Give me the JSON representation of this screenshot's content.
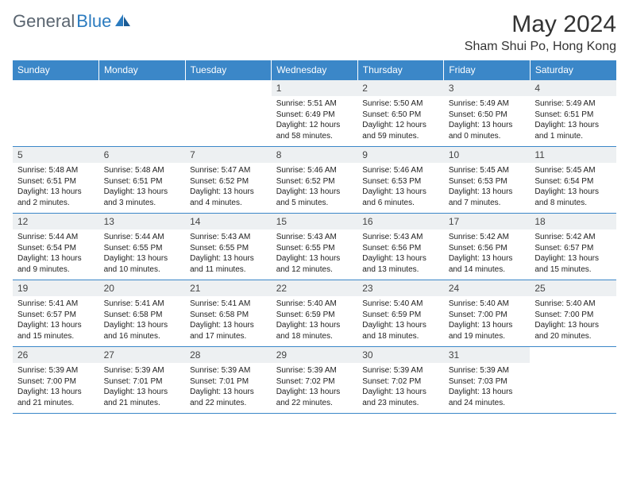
{
  "logo": {
    "text_a": "General",
    "text_b": "Blue"
  },
  "title": "May 2024",
  "location": "Sham Shui Po, Hong Kong",
  "colors": {
    "header_bg": "#3b87c8",
    "header_text": "#ffffff",
    "daynum_bg": "#edf0f2",
    "border": "#3b87c8",
    "logo_gray": "#5a6570",
    "logo_blue": "#2b7bbf"
  },
  "weekdays": [
    "Sunday",
    "Monday",
    "Tuesday",
    "Wednesday",
    "Thursday",
    "Friday",
    "Saturday"
  ],
  "weeks": [
    [
      null,
      null,
      null,
      {
        "n": "1",
        "sr": "5:51 AM",
        "ss": "6:49 PM",
        "dl": "12 hours and 58 minutes."
      },
      {
        "n": "2",
        "sr": "5:50 AM",
        "ss": "6:50 PM",
        "dl": "12 hours and 59 minutes."
      },
      {
        "n": "3",
        "sr": "5:49 AM",
        "ss": "6:50 PM",
        "dl": "13 hours and 0 minutes."
      },
      {
        "n": "4",
        "sr": "5:49 AM",
        "ss": "6:51 PM",
        "dl": "13 hours and 1 minute."
      }
    ],
    [
      {
        "n": "5",
        "sr": "5:48 AM",
        "ss": "6:51 PM",
        "dl": "13 hours and 2 minutes."
      },
      {
        "n": "6",
        "sr": "5:48 AM",
        "ss": "6:51 PM",
        "dl": "13 hours and 3 minutes."
      },
      {
        "n": "7",
        "sr": "5:47 AM",
        "ss": "6:52 PM",
        "dl": "13 hours and 4 minutes."
      },
      {
        "n": "8",
        "sr": "5:46 AM",
        "ss": "6:52 PM",
        "dl": "13 hours and 5 minutes."
      },
      {
        "n": "9",
        "sr": "5:46 AM",
        "ss": "6:53 PM",
        "dl": "13 hours and 6 minutes."
      },
      {
        "n": "10",
        "sr": "5:45 AM",
        "ss": "6:53 PM",
        "dl": "13 hours and 7 minutes."
      },
      {
        "n": "11",
        "sr": "5:45 AM",
        "ss": "6:54 PM",
        "dl": "13 hours and 8 minutes."
      }
    ],
    [
      {
        "n": "12",
        "sr": "5:44 AM",
        "ss": "6:54 PM",
        "dl": "13 hours and 9 minutes."
      },
      {
        "n": "13",
        "sr": "5:44 AM",
        "ss": "6:55 PM",
        "dl": "13 hours and 10 minutes."
      },
      {
        "n": "14",
        "sr": "5:43 AM",
        "ss": "6:55 PM",
        "dl": "13 hours and 11 minutes."
      },
      {
        "n": "15",
        "sr": "5:43 AM",
        "ss": "6:55 PM",
        "dl": "13 hours and 12 minutes."
      },
      {
        "n": "16",
        "sr": "5:43 AM",
        "ss": "6:56 PM",
        "dl": "13 hours and 13 minutes."
      },
      {
        "n": "17",
        "sr": "5:42 AM",
        "ss": "6:56 PM",
        "dl": "13 hours and 14 minutes."
      },
      {
        "n": "18",
        "sr": "5:42 AM",
        "ss": "6:57 PM",
        "dl": "13 hours and 15 minutes."
      }
    ],
    [
      {
        "n": "19",
        "sr": "5:41 AM",
        "ss": "6:57 PM",
        "dl": "13 hours and 15 minutes."
      },
      {
        "n": "20",
        "sr": "5:41 AM",
        "ss": "6:58 PM",
        "dl": "13 hours and 16 minutes."
      },
      {
        "n": "21",
        "sr": "5:41 AM",
        "ss": "6:58 PM",
        "dl": "13 hours and 17 minutes."
      },
      {
        "n": "22",
        "sr": "5:40 AM",
        "ss": "6:59 PM",
        "dl": "13 hours and 18 minutes."
      },
      {
        "n": "23",
        "sr": "5:40 AM",
        "ss": "6:59 PM",
        "dl": "13 hours and 18 minutes."
      },
      {
        "n": "24",
        "sr": "5:40 AM",
        "ss": "7:00 PM",
        "dl": "13 hours and 19 minutes."
      },
      {
        "n": "25",
        "sr": "5:40 AM",
        "ss": "7:00 PM",
        "dl": "13 hours and 20 minutes."
      }
    ],
    [
      {
        "n": "26",
        "sr": "5:39 AM",
        "ss": "7:00 PM",
        "dl": "13 hours and 21 minutes."
      },
      {
        "n": "27",
        "sr": "5:39 AM",
        "ss": "7:01 PM",
        "dl": "13 hours and 21 minutes."
      },
      {
        "n": "28",
        "sr": "5:39 AM",
        "ss": "7:01 PM",
        "dl": "13 hours and 22 minutes."
      },
      {
        "n": "29",
        "sr": "5:39 AM",
        "ss": "7:02 PM",
        "dl": "13 hours and 22 minutes."
      },
      {
        "n": "30",
        "sr": "5:39 AM",
        "ss": "7:02 PM",
        "dl": "13 hours and 23 minutes."
      },
      {
        "n": "31",
        "sr": "5:39 AM",
        "ss": "7:03 PM",
        "dl": "13 hours and 24 minutes."
      },
      null
    ]
  ],
  "labels": {
    "sunrise": "Sunrise:",
    "sunset": "Sunset:",
    "daylight": "Daylight:"
  }
}
